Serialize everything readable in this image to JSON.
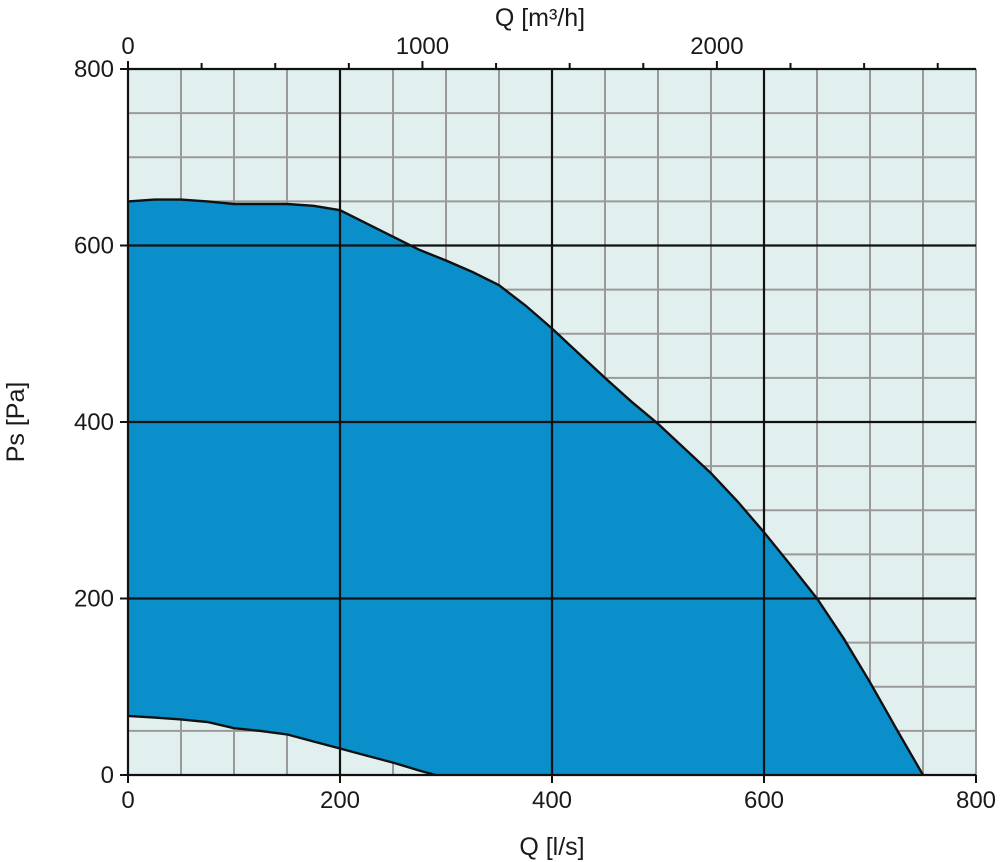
{
  "chart_data": {
    "type": "area",
    "title": "",
    "xlabel": "Q [l/s]",
    "ylabel": "Ps [Pa]",
    "secondary_xlabel": "Q [m³/h]",
    "xlim": [
      0,
      800
    ],
    "ylim": [
      0,
      800
    ],
    "secondary_xlim": [
      0,
      2880
    ],
    "x_ticks": [
      "0",
      "200",
      "400",
      "600",
      "800"
    ],
    "x_tick_values": [
      0,
      200,
      400,
      600,
      800
    ],
    "y_ticks": [
      "0",
      "200",
      "400",
      "600",
      "800"
    ],
    "y_tick_values": [
      0,
      200,
      400,
      600,
      800
    ],
    "secondary_x_ticks": [
      "0",
      "1000",
      "2000"
    ],
    "secondary_x_tick_values": [
      0,
      1000,
      2000
    ],
    "grid": true,
    "minor_grid_step": 50,
    "legend": "none",
    "colors": {
      "area_fill": "#0a8fcb",
      "plot_background": "#e1f0ee",
      "major_grid": "#111111",
      "minor_grid": "#9a9a9a",
      "outline": "#111111"
    },
    "series": [
      {
        "role": "upper_limit",
        "x": [
          0,
          25,
          50,
          75,
          100,
          125,
          150,
          175,
          200,
          225,
          250,
          275,
          300,
          325,
          350,
          375,
          400,
          425,
          450,
          475,
          500,
          525,
          550,
          575,
          600,
          625,
          650,
          675,
          700,
          725,
          750
        ],
        "values": [
          650,
          652,
          652,
          650,
          647,
          647,
          647,
          645,
          640,
          625,
          610,
          595,
          583,
          570,
          555,
          532,
          506,
          478,
          450,
          423,
          398,
          370,
          342,
          310,
          275,
          238,
          200,
          155,
          105,
          52,
          0
        ]
      },
      {
        "role": "lower_limit",
        "x": [
          0,
          25,
          50,
          75,
          100,
          125,
          150,
          175,
          200,
          225,
          250,
          275,
          290
        ],
        "values": [
          67,
          65,
          63,
          60,
          53,
          50,
          46,
          38,
          30,
          22,
          14,
          5,
          0
        ]
      }
    ]
  }
}
